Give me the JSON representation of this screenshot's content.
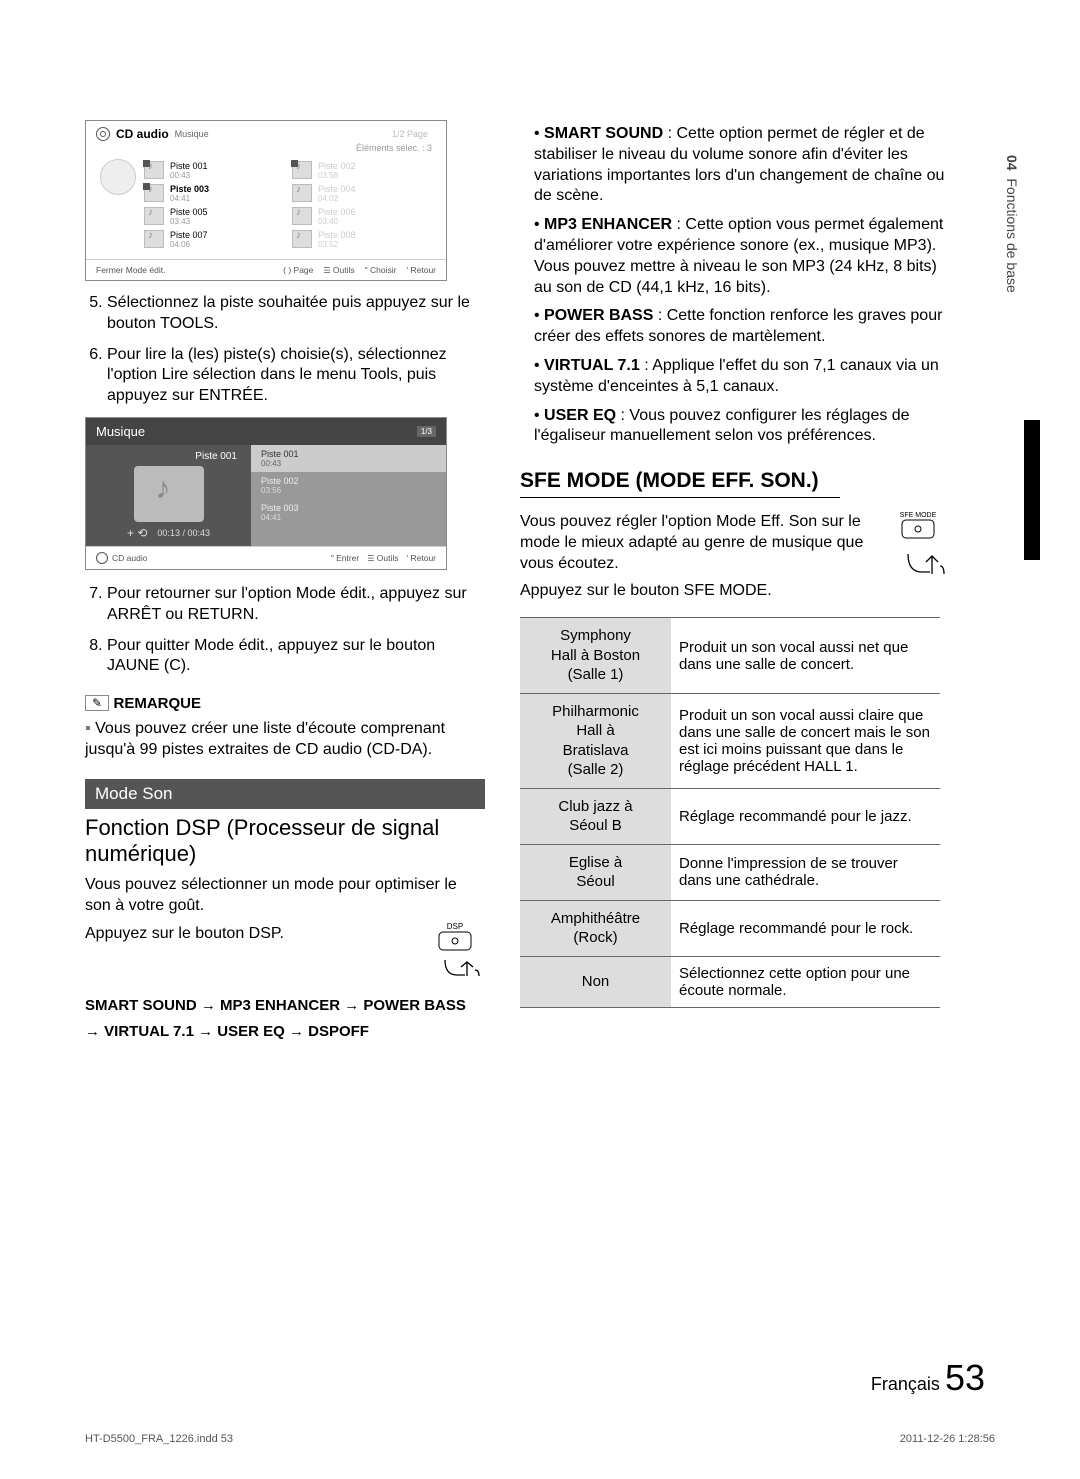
{
  "sideTab": {
    "num": "04",
    "label": "Fonctions de base"
  },
  "shot1": {
    "title": "CD audio",
    "sub": "Musique",
    "pageInd": "1/2 Page",
    "selInfo": "Éléments sélec. : 3",
    "leftTracks": [
      {
        "name": "Piste 001",
        "dur": "00:43",
        "chk": true
      },
      {
        "name": "Piste 003",
        "dur": "04:41",
        "chk": true,
        "sel": true
      },
      {
        "name": "Piste 005",
        "dur": "03:43"
      },
      {
        "name": "Piste 007",
        "dur": "04:06"
      }
    ],
    "rightTracks": [
      {
        "name": "Piste 002",
        "dur": "03:56",
        "chk": true
      },
      {
        "name": "Piste 004",
        "dur": "04:02"
      },
      {
        "name": "Piste 006",
        "dur": "03:40"
      },
      {
        "name": "Piste 008",
        "dur": "03:52"
      }
    ],
    "footer": [
      "Fermer Mode édit.",
      "( ) Page",
      "Outils",
      "\" Choisir",
      "' Retour"
    ]
  },
  "steps1": [
    "Sélectionnez la piste souhaitée puis appuyez sur le bouton TOOLS.",
    "Pour lire la (les) piste(s) choisie(s), sélectionnez l'option Lire sélection dans le menu Tools, puis appuyez sur ENTRÉE."
  ],
  "shot2": {
    "title": "Musique",
    "page": "1/3",
    "left": {
      "label": "Piste 001",
      "time": "00:13 / 00:43",
      "ctl": "+  ⟲"
    },
    "rows": [
      {
        "n": "Piste 001",
        "d": "00:43",
        "cur": true
      },
      {
        "n": "Piste 002",
        "d": "03:56"
      },
      {
        "n": "Piste 003",
        "d": "04:41"
      }
    ],
    "ftrL": "CD audio",
    "ftrR": [
      "\" Entrer",
      "Outils",
      "' Retour"
    ]
  },
  "steps2": [
    "Pour retourner sur l'option Mode édit., appuyez sur ARRÊT ou RETURN.",
    "Pour quitter Mode édit., appuyez sur le bouton JAUNE (C)."
  ],
  "remarque": {
    "title": "REMARQUE",
    "text": "Vous pouvez créer une liste d'écoute comprenant jusqu'à 99 pistes extraites de CD audio (CD-DA)."
  },
  "modeSon": "Mode Son",
  "dspTitle": "Fonction DSP (Processeur de signal numérique)",
  "dspIntro": "Vous pouvez sélectionner un mode pour optimiser le son à votre goût.",
  "dspPress": "Appuyez sur le bouton DSP.",
  "dspBtn": "DSP",
  "dspSeq": [
    "SMART SOUND",
    "MP3 ENHANCER",
    "POWER BASS",
    "VIRTUAL 7.1",
    "USER EQ",
    "DSPOFF"
  ],
  "rightBullets": [
    {
      "b": "SMART SOUND",
      "t": " : Cette option permet de régler et de stabiliser le niveau du volume sonore afin d'éviter les variations importantes lors d'un changement de chaîne ou de scène."
    },
    {
      "b": "MP3 ENHANCER",
      "t": " : Cette option vous permet également d'améliorer votre expérience sonore (ex., musique MP3). Vous pouvez mettre à niveau le son MP3 (24 kHz, 8 bits) au son de CD (44,1 kHz, 16 bits)."
    },
    {
      "b": "POWER BASS",
      "t": " : Cette fonction renforce les graves pour créer des effets sonores de martèlement."
    },
    {
      "b": "VIRTUAL 7.1",
      "t": " : Applique l'effet du son 7,1 canaux via un système d'enceintes à 5,1 canaux."
    },
    {
      "b": "USER EQ",
      "t": " : Vous pouvez configurer les réglages de l'égaliseur manuellement selon vos préférences."
    }
  ],
  "sfeTitle": "SFE MODE (MODE EFF. SON.)",
  "sfeIntro": "Vous pouvez régler l'option Mode Eff. Son sur le mode le mieux adapté au genre de musique que vous écoutez.",
  "sfePress": "Appuyez sur le bouton SFE MODE.",
  "sfeBtn": "SFE MODE",
  "sfeTable": [
    {
      "k": "Symphony Hall à Boston (Salle 1)",
      "v": "Produit un son vocal aussi net que dans une salle de concert."
    },
    {
      "k": "Philharmonic Hall à Bratislava (Salle 2)",
      "v": "Produit un son vocal aussi claire que dans une salle de concert mais le son est ici moins puissant que dans le réglage précédent HALL 1."
    },
    {
      "k": "Club jazz à Séoul B",
      "v": "Réglage recommandé pour le jazz."
    },
    {
      "k": "Eglise à Séoul",
      "v": "Donne l'impression de se trouver dans une cathédrale."
    },
    {
      "k": "Amphithéâtre (Rock)",
      "v": "Réglage recommandé pour le rock."
    },
    {
      "k": "Non",
      "v": "Sélectionnez cette option pour une écoute normale."
    }
  ],
  "footer": {
    "lang": "Français",
    "page": "53"
  },
  "indd": {
    "l": "HT-D5500_FRA_1226.indd   53",
    "r": "2011-12-26   1:28:56"
  }
}
